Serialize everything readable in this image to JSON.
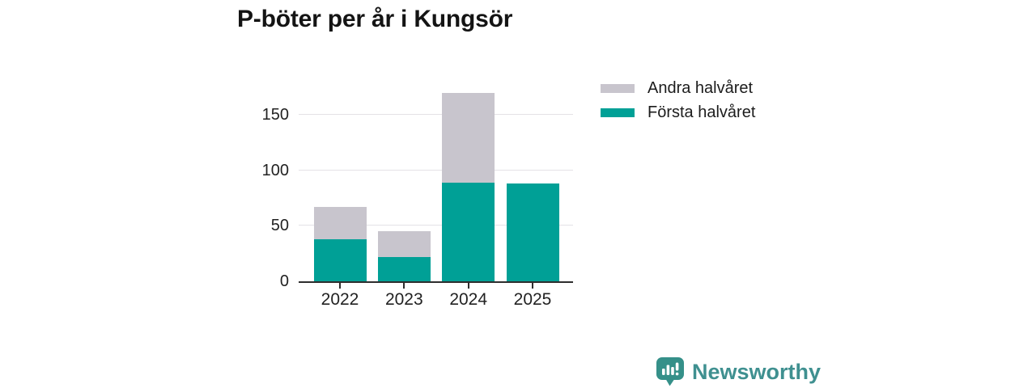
{
  "title": "P-böter per år i Kungsör",
  "legend": [
    {
      "label": "Andra halvåret",
      "color": "#c8c5cd"
    },
    {
      "label": "Första halvåret",
      "color": "#00a096"
    }
  ],
  "chart_data": {
    "type": "bar",
    "stacked": true,
    "title": "P-böter per år i Kungsör",
    "categories": [
      "2022",
      "2023",
      "2024",
      "2025"
    ],
    "series": [
      {
        "name": "Första halvåret",
        "color": "#00a096",
        "values": [
          38,
          22,
          89,
          88
        ]
      },
      {
        "name": "Andra halvåret",
        "color": "#c8c5cd",
        "values": [
          29,
          23,
          81,
          0
        ]
      }
    ],
    "totals": [
      67,
      45,
      170,
      88
    ],
    "xlabel": "",
    "ylabel": "",
    "yticks": [
      0,
      50,
      100,
      150
    ],
    "ylim": [
      0,
      175
    ],
    "grid": true,
    "axis_color": "#2e2e2e",
    "gridline_color": "#e4e2e6",
    "legend_position": "top-right"
  },
  "branding": {
    "logo_text": "Newsworthy",
    "logo_text_color": "#3f9090",
    "logo_icon": "bar-chart-speech-bubble-icon",
    "logo_icon_color": "#359089"
  }
}
